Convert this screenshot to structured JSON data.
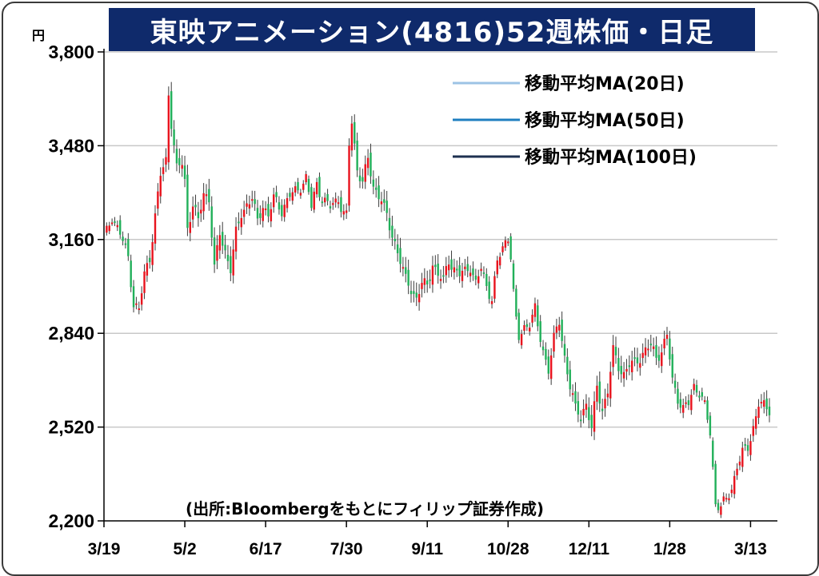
{
  "chart_data": {
    "type": "candlestick",
    "title": "東映アニメーション(4816)52週株価・日足",
    "unit": "円",
    "source": "(出所:Bloombergをもとにフィリップ証券作成)",
    "ylim": [
      2200,
      3800
    ],
    "yticks": [
      "3,800",
      "3,480",
      "3,160",
      "2,840",
      "2,520",
      "2,200"
    ],
    "ytick_values": [
      3800,
      3480,
      3160,
      2840,
      2520,
      2200
    ],
    "xticks": [
      "3/19",
      "5/2",
      "6/17",
      "7/30",
      "9/11",
      "10/28",
      "12/11",
      "1/28",
      "3/13"
    ],
    "xtick_index": [
      0,
      30,
      60,
      90,
      120,
      150,
      180,
      210,
      240
    ],
    "grid": true,
    "legend_position": "top-right",
    "colors": {
      "up": "#e8141e",
      "down": "#22b05a",
      "wick": "#3c3c3c",
      "grid": "#c8c8c8",
      "title_bg": "#0f2a6b"
    },
    "legend": [
      {
        "label": "移動平均MA(20日)",
        "color": "#9cc3e5"
      },
      {
        "label": "移動平均MA(50日)",
        "color": "#1f7fc0"
      },
      {
        "label": "移動平均MA(100日)",
        "color": "#1e3050"
      }
    ],
    "close_path": [
      [
        0,
        3160
      ],
      [
        3,
        3240
      ],
      [
        6,
        3180
      ],
      [
        9,
        3100
      ],
      [
        11,
        2940
      ],
      [
        13,
        2920
      ],
      [
        15,
        3040
      ],
      [
        17,
        3100
      ],
      [
        19,
        3240
      ],
      [
        21,
        3380
      ],
      [
        23,
        3430
      ],
      [
        24,
        3660
      ],
      [
        25,
        3560
      ],
      [
        27,
        3400
      ],
      [
        29,
        3420
      ],
      [
        30,
        3360
      ],
      [
        31,
        3200
      ],
      [
        33,
        3280
      ],
      [
        35,
        3220
      ],
      [
        37,
        3320
      ],
      [
        39,
        3300
      ],
      [
        41,
        3060
      ],
      [
        43,
        3180
      ],
      [
        45,
        3120
      ],
      [
        47,
        3060
      ],
      [
        49,
        3180
      ],
      [
        51,
        3250
      ],
      [
        53,
        3280
      ],
      [
        55,
        3300
      ],
      [
        57,
        3220
      ],
      [
        59,
        3280
      ],
      [
        61,
        3240
      ],
      [
        63,
        3300
      ],
      [
        66,
        3260
      ],
      [
        69,
        3310
      ],
      [
        72,
        3330
      ],
      [
        75,
        3370
      ],
      [
        77,
        3270
      ],
      [
        79,
        3350
      ],
      [
        81,
        3300
      ],
      [
        84,
        3270
      ],
      [
        87,
        3300
      ],
      [
        89,
        3250
      ],
      [
        90,
        3240
      ],
      [
        91,
        3480
      ],
      [
        92,
        3560
      ],
      [
        94,
        3400
      ],
      [
        96,
        3360
      ],
      [
        98,
        3430
      ],
      [
        100,
        3340
      ],
      [
        103,
        3300
      ],
      [
        106,
        3200
      ],
      [
        108,
        3150
      ],
      [
        110,
        3090
      ],
      [
        112,
        3020
      ],
      [
        114,
        2990
      ],
      [
        116,
        2960
      ],
      [
        118,
        3010
      ],
      [
        120,
        3000
      ],
      [
        122,
        3080
      ],
      [
        124,
        3040
      ],
      [
        126,
        3020
      ],
      [
        128,
        3090
      ],
      [
        130,
        3060
      ],
      [
        132,
        3040
      ],
      [
        134,
        3050
      ],
      [
        136,
        3070
      ],
      [
        138,
        3010
      ],
      [
        140,
        3060
      ],
      [
        142,
        3000
      ],
      [
        144,
        2960
      ],
      [
        146,
        3080
      ],
      [
        148,
        3130
      ],
      [
        150,
        3170
      ],
      [
        151,
        3110
      ],
      [
        152,
        2980
      ],
      [
        153,
        2880
      ],
      [
        154,
        2820
      ],
      [
        156,
        2860
      ],
      [
        158,
        2880
      ],
      [
        160,
        2920
      ],
      [
        161,
        2860
      ],
      [
        163,
        2780
      ],
      [
        165,
        2720
      ],
      [
        167,
        2820
      ],
      [
        169,
        2880
      ],
      [
        171,
        2760
      ],
      [
        173,
        2660
      ],
      [
        175,
        2580
      ],
      [
        177,
        2560
      ],
      [
        179,
        2600
      ],
      [
        181,
        2510
      ],
      [
        183,
        2660
      ],
      [
        185,
        2580
      ],
      [
        187,
        2640
      ],
      [
        189,
        2780
      ],
      [
        191,
        2730
      ],
      [
        193,
        2700
      ],
      [
        195,
        2730
      ],
      [
        197,
        2740
      ],
      [
        199,
        2760
      ],
      [
        201,
        2780
      ],
      [
        203,
        2800
      ],
      [
        205,
        2760
      ],
      [
        207,
        2780
      ],
      [
        209,
        2830
      ],
      [
        211,
        2680
      ],
      [
        213,
        2620
      ],
      [
        215,
        2580
      ],
      [
        217,
        2600
      ],
      [
        219,
        2660
      ],
      [
        221,
        2640
      ],
      [
        223,
        2590
      ],
      [
        225,
        2500
      ],
      [
        227,
        2260
      ],
      [
        229,
        2250
      ],
      [
        231,
        2270
      ],
      [
        233,
        2310
      ],
      [
        235,
        2390
      ],
      [
        237,
        2430
      ],
      [
        239,
        2450
      ],
      [
        241,
        2520
      ],
      [
        243,
        2600
      ],
      [
        245,
        2590
      ],
      [
        247,
        2580
      ]
    ],
    "ohlc_note": "candles drawn from close_path"
  }
}
